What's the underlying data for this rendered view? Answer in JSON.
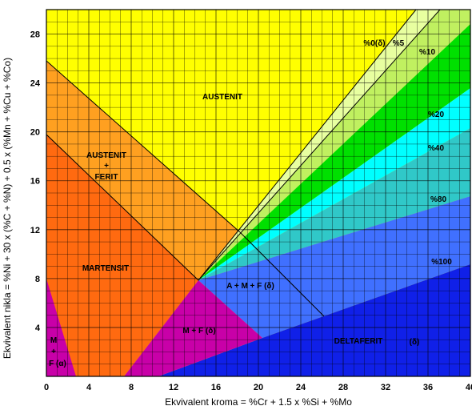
{
  "axes": {
    "x_title": "Ekvivalent kroma = %Cr + 1.5 x %Si + %Mo",
    "y_title": "Ekvivalent nikla = %Ni + 30 x (%C + %N) + 0.5 x (%Mn + %Cu + %Co)",
    "x_ticks": [
      "0",
      "4",
      "8",
      "12",
      "16",
      "20",
      "24",
      "28",
      "32",
      "36",
      "40"
    ],
    "y_ticks": [
      "4",
      "8",
      "12",
      "16",
      "20",
      "24",
      "28"
    ]
  },
  "regions": {
    "austenit": "AUSTENIT",
    "austenit_ferit_1": "AUSTENIT",
    "austenit_ferit_2": "+",
    "austenit_ferit_3": "FERIT",
    "martensit": "MARTENSIT",
    "amf": "A + M + F (δ)",
    "mf": "M + F  (δ)",
    "deltaferit_1": "DELTAFERIT",
    "deltaferit_2": "(δ)",
    "mfd_1": "M",
    "mfd_2": "+",
    "mfd_3": "F (α)"
  },
  "ferrite_lines": [
    "%0(δ)",
    "%5",
    "%10",
    "%20",
    "%40",
    "%80",
    "%100"
  ],
  "colors": {
    "austenit": "#FFFF00",
    "austenit_ferit": "#FFA020",
    "martensit": "#FF6A10",
    "mf": "#C800A8",
    "band_0_5": "#E8FFA0",
    "band_5_10": "#C0F060",
    "band_10_20": "#00E000",
    "band_20_40": "#00FFFF",
    "band_40_80": "#30C8C8",
    "band_80_100": "#4070FF",
    "deltaferit": "#1020E8",
    "grid": "#000000"
  }
}
